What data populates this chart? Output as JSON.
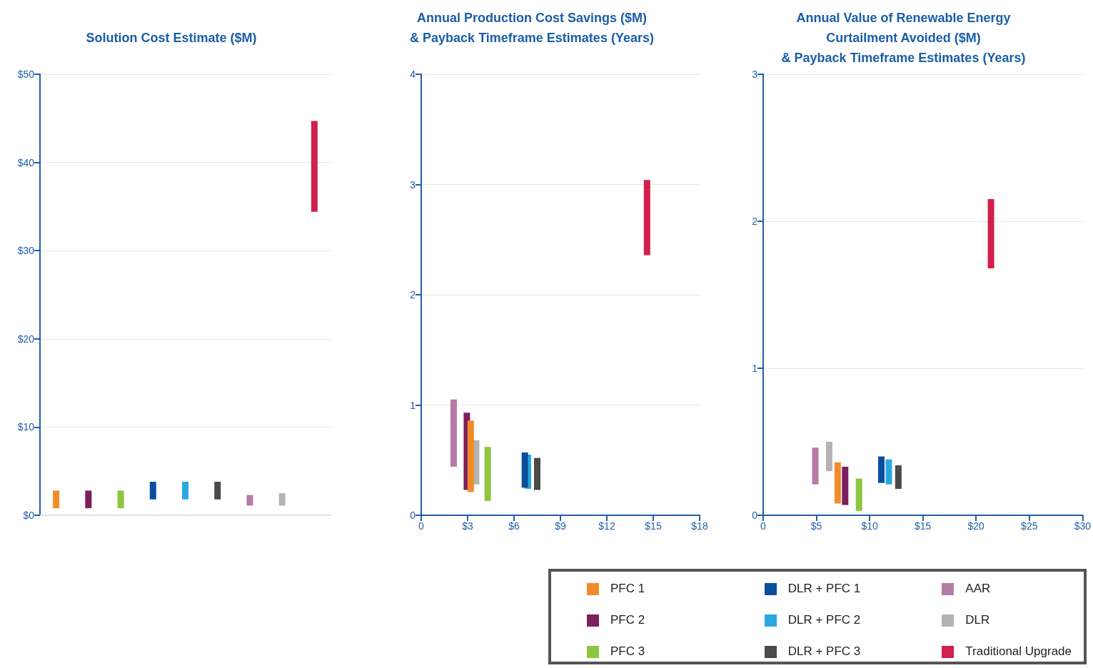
{
  "chart_data": [
    {
      "type": "bar",
      "title": "Solution Cost Estimate ($M)",
      "categories": [
        null,
        null,
        null,
        null,
        null,
        null,
        null,
        null,
        null
      ],
      "ylim": [
        0,
        50
      ],
      "yticks": [
        {
          "value": 0,
          "label": "$0"
        },
        {
          "value": 10,
          "label": "$10"
        },
        {
          "value": 20,
          "label": "$20"
        },
        {
          "value": 30,
          "label": "$30"
        },
        {
          "value": 40,
          "label": "$40"
        },
        {
          "value": 50,
          "label": "$50"
        }
      ],
      "grid": "y",
      "legend": "bottom",
      "series": [
        {
          "name": "PFC 1",
          "color": "#f28c28",
          "values": [
            2.0,
            null,
            null,
            null,
            null,
            null,
            null,
            null,
            null
          ],
          "base": [
            0.8,
            null,
            null,
            null,
            null,
            null,
            null,
            null,
            null
          ]
        },
        {
          "name": "PFC 2",
          "color": "#7b1f5e",
          "values": [
            null,
            2.0,
            null,
            null,
            null,
            null,
            null,
            null,
            null
          ],
          "base": [
            null,
            0.8,
            null,
            null,
            null,
            null,
            null,
            null,
            null
          ]
        },
        {
          "name": "PFC 3",
          "color": "#8dc63f",
          "values": [
            null,
            null,
            2.0,
            null,
            null,
            null,
            null,
            null,
            null
          ],
          "base": [
            null,
            null,
            0.8,
            null,
            null,
            null,
            null,
            null,
            null
          ]
        },
        {
          "name": "DLR + PFC 1",
          "color": "#0a4f9c",
          "values": [
            null,
            null,
            null,
            2.0,
            null,
            null,
            null,
            null,
            null
          ],
          "base": [
            null,
            null,
            null,
            1.8,
            null,
            null,
            null,
            null,
            null
          ]
        },
        {
          "name": "DLR + PFC 2",
          "color": "#29a8e0",
          "values": [
            null,
            null,
            null,
            null,
            2.0,
            null,
            null,
            null,
            null
          ],
          "base": [
            null,
            null,
            null,
            null,
            1.8,
            null,
            null,
            null,
            null
          ]
        },
        {
          "name": "DLR + PFC 3",
          "color": "#4a4a4a",
          "values": [
            null,
            null,
            null,
            null,
            null,
            2.0,
            null,
            null,
            null
          ],
          "base": [
            null,
            null,
            null,
            null,
            null,
            1.8,
            null,
            null,
            null
          ]
        },
        {
          "name": "AAR",
          "color": "#b67ba4",
          "values": [
            null,
            null,
            null,
            null,
            null,
            null,
            1.2,
            null,
            null
          ],
          "base": [
            null,
            null,
            null,
            null,
            null,
            null,
            1.1,
            null,
            null
          ]
        },
        {
          "name": "DLR",
          "color": "#b3b3b3",
          "values": [
            null,
            null,
            null,
            null,
            null,
            null,
            null,
            1.4,
            null
          ],
          "base": [
            null,
            null,
            null,
            null,
            null,
            null,
            null,
            1.1,
            null
          ]
        },
        {
          "name": "Traditional Upgrade",
          "color": "#d31f4b",
          "values": [
            null,
            null,
            null,
            null,
            null,
            null,
            null,
            null,
            10.3
          ],
          "base": [
            null,
            null,
            null,
            null,
            null,
            null,
            null,
            null,
            34.4
          ]
        }
      ]
    },
    {
      "type": "bar",
      "title": "Annual Production Cost Savings ($M)\n& Payback Timeframe Estimates (Years)",
      "xlim": [
        0,
        18
      ],
      "xticks": [
        0,
        {
          "value": 3,
          "label": "$3"
        },
        {
          "value": 6,
          "label": "$6"
        },
        {
          "value": 9,
          "label": "$9"
        },
        {
          "value": 12,
          "label": "$12"
        },
        {
          "value": 15,
          "label": "$15"
        },
        {
          "value": 18,
          "label": "$18"
        }
      ],
      "ylim": [
        0,
        4
      ],
      "yticks": [
        0,
        1,
        2,
        3,
        4
      ],
      "grid": "y",
      "series": [
        {
          "color": "#f28c28",
          "x": [
            3.2
          ],
          "values": [
            0.65
          ],
          "base": [
            0.21
          ]
        },
        {
          "color": "#7b1f5e",
          "x": [
            2.95
          ],
          "values": [
            0.7
          ],
          "base": [
            0.23
          ]
        },
        {
          "color": "#8dc63f",
          "x": [
            4.3
          ],
          "values": [
            0.49
          ],
          "base": [
            0.13
          ]
        },
        {
          "color": "#0a4f9c",
          "x": [
            6.7
          ],
          "values": [
            0.32
          ],
          "base": [
            0.25
          ]
        },
        {
          "color": "#29a8e0",
          "x": [
            6.9
          ],
          "values": [
            0.31
          ],
          "base": [
            0.24
          ]
        },
        {
          "color": "#4a4a4a",
          "x": [
            7.5
          ],
          "values": [
            0.29
          ],
          "base": [
            0.23
          ]
        },
        {
          "color": "#b67ba4",
          "x": [
            2.1
          ],
          "values": [
            0.61
          ],
          "base": [
            0.44
          ]
        },
        {
          "color": "#b3b3b3",
          "x": [
            3.55
          ],
          "values": [
            0.4
          ],
          "base": [
            0.28
          ]
        },
        {
          "color": "#d31f4b",
          "x": [
            14.6
          ],
          "values": [
            0.68
          ],
          "base": [
            2.36
          ]
        }
      ]
    },
    {
      "type": "bar",
      "title": "Annual Value of Renewable Energy\nCurtailment Avoided ($M)\n& Payback Timeframe Estimates (Years)",
      "xlim": [
        0,
        30
      ],
      "xticks": [
        0,
        {
          "value": 5,
          "label": "$5"
        },
        {
          "value": 10,
          "label": "$10"
        },
        {
          "value": 15,
          "label": "$15"
        },
        {
          "value": 20,
          "label": "$20"
        },
        {
          "value": 25,
          "label": "$25"
        },
        {
          "value": 30,
          "label": "$30"
        }
      ],
      "ylim": [
        0,
        3
      ],
      "yticks": [
        0,
        1,
        2,
        3
      ],
      "grid": "y",
      "series": [
        {
          "color": "#f28c28",
          "x": [
            7.0
          ],
          "values": [
            0.28
          ],
          "base": [
            0.08
          ]
        },
        {
          "color": "#7b1f5e",
          "x": [
            7.7
          ],
          "values": [
            0.26
          ],
          "base": [
            0.07
          ]
        },
        {
          "color": "#8dc63f",
          "x": [
            9.0
          ],
          "values": [
            0.22
          ],
          "base": [
            0.03
          ]
        },
        {
          "color": "#0a4f9c",
          "x": [
            11.1
          ],
          "values": [
            0.18
          ],
          "base": [
            0.22
          ]
        },
        {
          "color": "#29a8e0",
          "x": [
            11.8
          ],
          "values": [
            0.17
          ],
          "base": [
            0.21
          ]
        },
        {
          "color": "#4a4a4a",
          "x": [
            12.7
          ],
          "values": [
            0.16
          ],
          "base": [
            0.18
          ]
        },
        {
          "color": "#b67ba4",
          "x": [
            4.9
          ],
          "values": [
            0.25
          ],
          "base": [
            0.21
          ]
        },
        {
          "color": "#b3b3b3",
          "x": [
            6.2
          ],
          "values": [
            0.2
          ],
          "base": [
            0.3
          ]
        },
        {
          "color": "#d31f4b",
          "x": [
            21.4
          ],
          "values": [
            0.47
          ],
          "base": [
            1.68
          ]
        }
      ]
    }
  ]
}
